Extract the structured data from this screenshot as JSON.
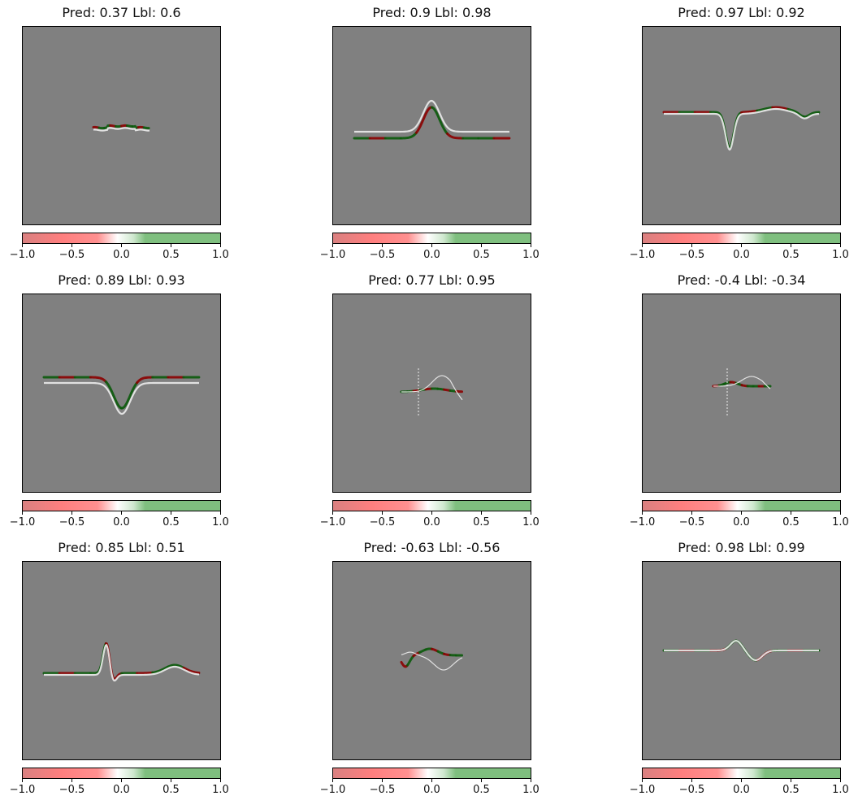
{
  "colors": {
    "background": "#808080",
    "positive": "#0a5a0a",
    "negative": "#8b0000",
    "signal": "#e6e6e6",
    "cbar_neg": "#e06b6b",
    "cbar_mid": "#ffffff",
    "cbar_pos": "#7fbf7f"
  },
  "colorbar": {
    "range": [
      -1.0,
      1.0
    ],
    "ticks": [
      "−1.0",
      "−0.5",
      "0.0",
      "0.5",
      "1.0"
    ]
  },
  "chart_data": [
    {
      "type": "heatmap",
      "title": "Pred: 0.37 Lbl: 0.6",
      "pred": 0.37,
      "label": 0.6
    },
    {
      "type": "heatmap",
      "title": "Pred: 0.9 Lbl: 0.98",
      "pred": 0.9,
      "label": 0.98
    },
    {
      "type": "heatmap",
      "title": "Pred: 0.97 Lbl: 0.92",
      "pred": 0.97,
      "label": 0.92
    },
    {
      "type": "heatmap",
      "title": "Pred: 0.89 Lbl: 0.93",
      "pred": 0.89,
      "label": 0.93
    },
    {
      "type": "heatmap",
      "title": "Pred: 0.77 Lbl: 0.95",
      "pred": 0.77,
      "label": 0.95
    },
    {
      "type": "heatmap",
      "title": "Pred: -0.4 Lbl: -0.34",
      "pred": -0.4,
      "label": -0.34
    },
    {
      "type": "heatmap",
      "title": "Pred: 0.85 Lbl: 0.51",
      "pred": 0.85,
      "label": 0.51
    },
    {
      "type": "heatmap",
      "title": "Pred: -0.63 Lbl: -0.56",
      "pred": -0.63,
      "label": -0.56
    },
    {
      "type": "heatmap",
      "title": "Pred: 0.98 Lbl: 0.99",
      "pred": 0.98,
      "label": 0.99
    }
  ]
}
